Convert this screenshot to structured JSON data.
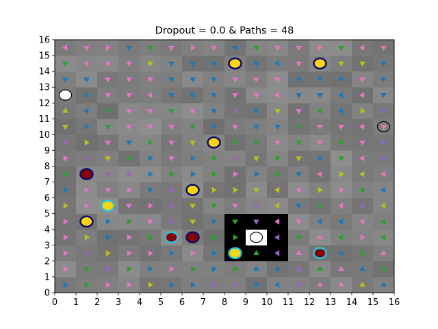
{
  "chart_data": {
    "type": "heatmap",
    "title": "Dropout = 0.0 & Paths = 48",
    "xlabel": "",
    "ylabel": "",
    "xlim": [
      0,
      16
    ],
    "ylim": [
      0,
      16
    ],
    "xticks": [
      "0",
      "1",
      "2",
      "3",
      "4",
      "5",
      "6",
      "7",
      "8",
      "9",
      "10",
      "11",
      "12",
      "13",
      "14",
      "15",
      "16"
    ],
    "yticks": [
      "0",
      "1",
      "2",
      "3",
      "4",
      "5",
      "6",
      "7",
      "8",
      "9",
      "10",
      "11",
      "12",
      "13",
      "14",
      "15",
      "16"
    ],
    "grid": false,
    "legend": "none",
    "colors": {
      "arrow_blue": "#1f77b4",
      "arrow_green": "#2ca02c",
      "arrow_pink": "#e377c2",
      "arrow_olive": "#bcbd22",
      "arrow_purple": "#9467bd",
      "marker_gold": "#ffd700",
      "marker_navy_edge": "#0a0a6e",
      "marker_cyan_edge": "#1ec8e8",
      "marker_darkred": "#8b0000",
      "goal_white": "#ffffff",
      "wall_black": "#000000"
    },
    "walls": [
      [
        8,
        4
      ],
      [
        9,
        4
      ],
      [
        10,
        4
      ],
      [
        8,
        3
      ],
      [
        10,
        3
      ],
      [
        8,
        2
      ],
      [
        9,
        2
      ],
      [
        10,
        2
      ]
    ],
    "goal": {
      "x": 9,
      "y": 3
    },
    "arrow_rows": {
      "15": "LDRDDDRDLDDDRDLD",
      "14": "DLLDDDDDDDLDDDDD",
      "13": "DDDDDDDDDDDDDDDD",
      "12": "DLDDLDDDDDLDDLLD",
      "11": "ULDDDDDDDDDDLLRD",
      "10": "DRDDDDDDDDDDDDLD",
      "9": "DRDDRDDUDDDDDDDD",
      "8": "RRDRDDRDRDDDDDLR",
      "7": "RRDRRRRRRRDDLRLL",
      "6": "RRDRDRDRRDLLRRLL",
      "5": "RRDDRRDDDDLDLLLL",
      "4": "RRRRRRDDDDLDLLLL",
      "3": "RRRRRRRRRDLDULRL",
      "2": "RRRRRRRRUUUUUUUU",
      "1": "RRRRRRRRUUUUUUUL",
      "0": "RRRRRRRRRULUUUUU"
    },
    "arrow_color_rows": {
      "15": "pppbgpppbgpppgpp",
      "14": "gpppobbbpbbpboob",
      "13": "bbpppbbbpppbbbpb",
      "12": "bbpppbbbpppbbbpb",
      "11": "obgppgpbkbopgbok",
      "10": "obgpppgbpbbgpppp",
      "9": "kopbgpooggpgpgpk",
      "8": "pkogbpbgkogobgpk",
      "7": "gbkkbgbgpbgbpoop",
      "6": "bpppbkboooopopgb",
      "5": "oppppkogpkobgpko",
      "4": "ppbgpkobbbbpbbpg",
      "3": "pobpgpggpbpgpgpg",
      "2": "pkoppbpbgggpgbgp",
      "1": "pgkgbpgbgbbkgpbg",
      "0": "bgppobbkkbbkppob"
    },
    "markers": [
      {
        "x": 8.5,
        "y": 14.5,
        "type": "gold-navy"
      },
      {
        "x": 12.5,
        "y": 14.5,
        "type": "gold-navy"
      },
      {
        "x": 0.5,
        "y": 12.5,
        "type": "white-black"
      },
      {
        "x": 15.5,
        "y": 10.5,
        "type": "gray-black"
      },
      {
        "x": 7.5,
        "y": 9.5,
        "type": "gold-navy"
      },
      {
        "x": 1.5,
        "y": 7.5,
        "type": "red-navy"
      },
      {
        "x": 6.5,
        "y": 6.5,
        "type": "gold-navy"
      },
      {
        "x": 2.5,
        "y": 5.5,
        "type": "gold-cyan"
      },
      {
        "x": 1.5,
        "y": 4.5,
        "type": "gold-navy"
      },
      {
        "x": 5.5,
        "y": 3.5,
        "type": "red-cyan"
      },
      {
        "x": 6.5,
        "y": 3.5,
        "type": "red-navy"
      },
      {
        "x": 9.5,
        "y": 3.5,
        "type": "white-black"
      },
      {
        "x": 8.5,
        "y": 2.5,
        "type": "gold-cyan"
      },
      {
        "x": 12.5,
        "y": 2.5,
        "type": "red-cyan"
      }
    ]
  }
}
